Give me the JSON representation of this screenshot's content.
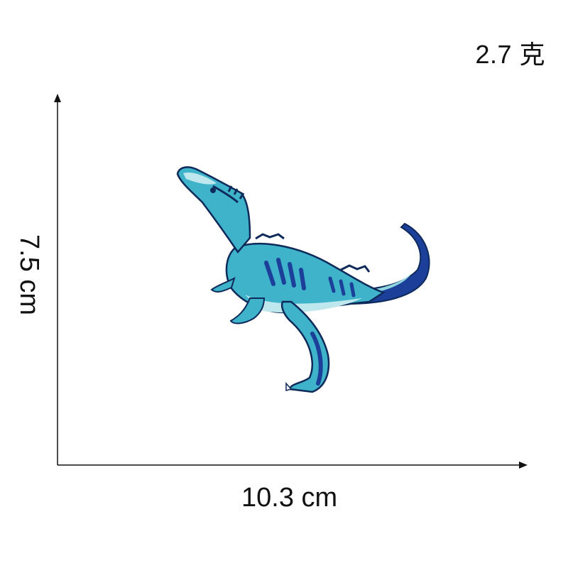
{
  "weight_label": "2.7 克",
  "height_label": "7.5 cm",
  "width_label": "10.3 cm",
  "product": {
    "icon": "dinosaur-patch",
    "colors": {
      "light": "#8fd6e0",
      "mid": "#3fb3c9",
      "dark": "#1c3f9a",
      "outline": "#0e2a5a"
    }
  }
}
